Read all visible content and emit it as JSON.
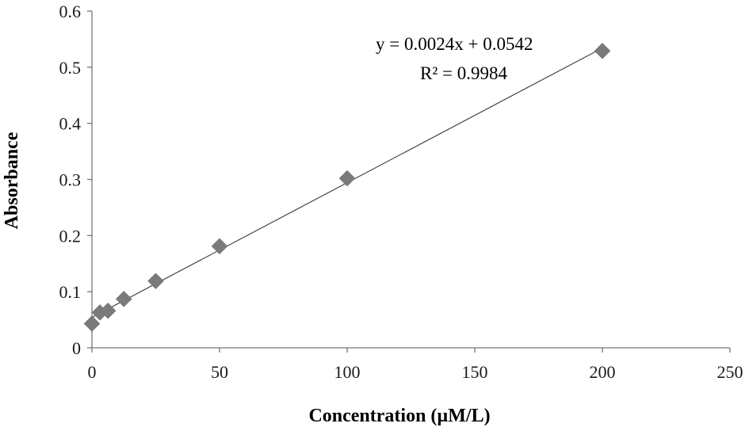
{
  "chart_data": {
    "type": "scatter",
    "title": "",
    "xlabel": "Concentration (µM/L)",
    "ylabel": "Absorbance",
    "xlim": [
      0,
      250
    ],
    "ylim": [
      0,
      0.6
    ],
    "x_ticks": [
      "0",
      "50",
      "100",
      "150",
      "200",
      "250"
    ],
    "y_ticks": [
      "0",
      "0.1",
      "0.2",
      "0.3",
      "0.4",
      "0.5",
      "0.6"
    ],
    "grid": false,
    "legend": "none",
    "marker": "diamond",
    "marker_color": "#7a7a7a",
    "series": [
      {
        "points": [
          {
            "x": 0,
            "y": 0.043
          },
          {
            "x": 3.125,
            "y": 0.063
          },
          {
            "x": 6.25,
            "y": 0.066
          },
          {
            "x": 12.5,
            "y": 0.087
          },
          {
            "x": 25,
            "y": 0.119
          },
          {
            "x": 50,
            "y": 0.181
          },
          {
            "x": 100,
            "y": 0.302
          },
          {
            "x": 200,
            "y": 0.529
          }
        ]
      }
    ],
    "trendline": {
      "slope": 0.0024,
      "intercept": 0.0542,
      "x_range": [
        0,
        200
      ],
      "equation_label": "y = 0.0024x  + 0.0542",
      "r2_label": "R² = 0.9984"
    }
  }
}
